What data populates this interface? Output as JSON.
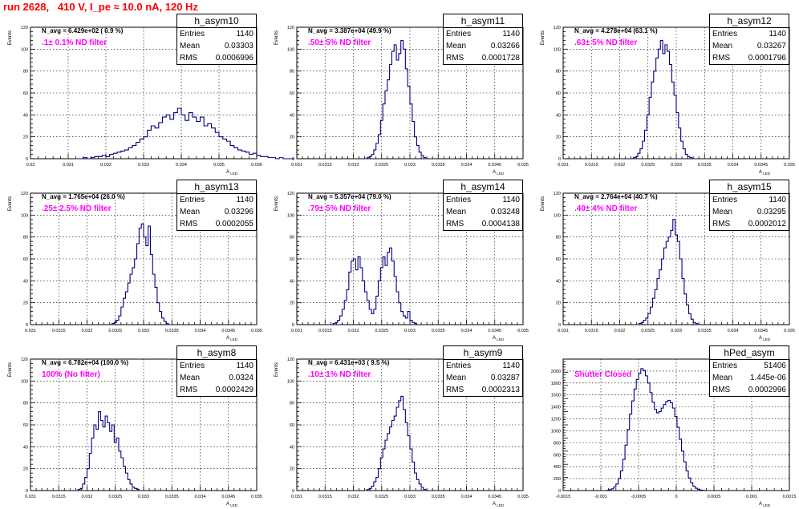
{
  "title": "run 2628,   410 V, I_pe ≈ 10.0 nA, 120 Hz",
  "chart_data": [
    {
      "type": "bar",
      "name": "h_asym10",
      "stats": {
        "entries_label": "Entries",
        "entries": "1140",
        "mean_label": "Mean",
        "mean": "0.03303",
        "rms_label": "RMS",
        "rms": "0.0006996"
      },
      "navg": "N_avg = 6.429e+02 ( 0.9 %)",
      "filter": ".1± 0.1% ND filter",
      "xlabel": "A_LED",
      "ylabel": "Events",
      "xlim": [
        0.03,
        0.036
      ],
      "ylim": [
        0,
        120
      ],
      "xticks": [
        "0.03",
        "0.031",
        "0.032",
        "0.033",
        "0.034",
        "0.035",
        "0.036"
      ],
      "yticks": [
        "0",
        "20",
        "40",
        "60",
        "80",
        "100",
        "120"
      ],
      "x0": 0.0312,
      "bin": 0.0001,
      "values": [
        0,
        0,
        1,
        0,
        1,
        2,
        2,
        3,
        2,
        4,
        5,
        6,
        7,
        8,
        10,
        12,
        15,
        18,
        20,
        26,
        30,
        28,
        33,
        38,
        40,
        36,
        42,
        46,
        40,
        35,
        42,
        38,
        34,
        38,
        30,
        32,
        28,
        24,
        20,
        18,
        16,
        12,
        10,
        8,
        7,
        6,
        4,
        5,
        3,
        2,
        2,
        1,
        1,
        0,
        1,
        0,
        0,
        0
      ]
    },
    {
      "type": "bar",
      "name": "h_asym11",
      "stats": {
        "entries_label": "Entries",
        "entries": "1140",
        "mean_label": "Mean",
        "mean": "0.03266",
        "rms_label": "RMS",
        "rms": "0.0001728"
      },
      "navg": "N_avg = 3.387e+04 (49.9 %)",
      "filter": ".50± 5% ND filter",
      "xlabel": "A_LED",
      "ylabel": "Events",
      "xlim": [
        0.031,
        0.035
      ],
      "ylim": [
        0,
        120
      ],
      "xticks": [
        "0.031",
        "0.0315",
        "0.032",
        "0.0325",
        "0.033",
        "0.0335",
        "0.034",
        "0.0345",
        "0.035"
      ],
      "yticks": [
        "0",
        "20",
        "40",
        "60",
        "80",
        "100",
        "120"
      ],
      "x0": 0.0322,
      "bin": 4e-05,
      "values": [
        0,
        1,
        2,
        4,
        8,
        14,
        22,
        35,
        50,
        62,
        72,
        86,
        98,
        104,
        90,
        96,
        108,
        100,
        82,
        66,
        50,
        34,
        20,
        12,
        6,
        3,
        1,
        0
      ]
    },
    {
      "type": "bar",
      "name": "h_asym12",
      "stats": {
        "entries_label": "Entries",
        "entries": "1140",
        "mean_label": "Mean",
        "mean": "0.03267",
        "rms_label": "RMS",
        "rms": "0.0001796"
      },
      "navg": "N_avg = 4.278e+04 (63.1 %)",
      "filter": ".63± 5% ND filter",
      "xlabel": "A_LED",
      "ylabel": "Events",
      "xlim": [
        0.031,
        0.035
      ],
      "ylim": [
        0,
        120
      ],
      "xticks": [
        "0.031",
        "0.0315",
        "0.032",
        "0.0325",
        "0.033",
        "0.0335",
        "0.034",
        "0.0345",
        "0.035"
      ],
      "yticks": [
        "0",
        "20",
        "40",
        "60",
        "80",
        "100",
        "120"
      ],
      "x0": 0.0322,
      "bin": 4e-05,
      "values": [
        0,
        1,
        2,
        5,
        9,
        16,
        26,
        40,
        56,
        70,
        80,
        92,
        100,
        108,
        96,
        104,
        98,
        86,
        70,
        58,
        42,
        28,
        16,
        9,
        4,
        2,
        1,
        0
      ]
    },
    {
      "type": "bar",
      "name": "h_asym13",
      "stats": {
        "entries_label": "Entries",
        "entries": "1140",
        "mean_label": "Mean",
        "mean": "0.03296",
        "rms_label": "RMS",
        "rms": "0.0002055"
      },
      "navg": "N_avg = 1.765e+04 (26.0 %)",
      "filter": ".25± 2.5% ND filter",
      "xlabel": "A_LED",
      "ylabel": "Events",
      "xlim": [
        0.031,
        0.035
      ],
      "ylim": [
        0,
        120
      ],
      "xticks": [
        "0.031",
        "0.0315",
        "0.032",
        "0.0325",
        "0.033",
        "0.0335",
        "0.034",
        "0.0345",
        "0.035"
      ],
      "yticks": [
        "0",
        "20",
        "40",
        "60",
        "80",
        "100",
        "120"
      ],
      "x0": 0.0324,
      "bin": 4e-05,
      "values": [
        0,
        1,
        2,
        4,
        8,
        16,
        24,
        30,
        38,
        46,
        52,
        60,
        74,
        88,
        92,
        80,
        72,
        90,
        64,
        46,
        34,
        20,
        12,
        6,
        3,
        1,
        0
      ]
    },
    {
      "type": "bar",
      "name": "h_asym14",
      "stats": {
        "entries_label": "Entries",
        "entries": "1140",
        "mean_label": "Mean",
        "mean": "0.03248",
        "rms_label": "RMS",
        "rms": "0.0004138"
      },
      "navg": "N_avg = 5.357e+04 (79.0 %)",
      "filter": ".79± 5% ND filter",
      "xlabel": "A_LED",
      "ylabel": "Events",
      "xlim": [
        0.031,
        0.035
      ],
      "ylim": [
        0,
        120
      ],
      "xticks": [
        "0.031",
        "0.0315",
        "0.032",
        "0.0325",
        "0.033",
        "0.0335",
        "0.034",
        "0.0345",
        "0.035"
      ],
      "yticks": [
        "0",
        "20",
        "40",
        "60",
        "80",
        "100",
        "120"
      ],
      "x0": 0.0316,
      "bin": 4e-05,
      "values": [
        0,
        1,
        2,
        4,
        8,
        14,
        22,
        32,
        48,
        58,
        60,
        50,
        62,
        52,
        40,
        30,
        22,
        14,
        10,
        14,
        26,
        40,
        52,
        62,
        54,
        66,
        70,
        58,
        44,
        30,
        20,
        12,
        8,
        6,
        12,
        4,
        2,
        1,
        0
      ]
    },
    {
      "type": "bar",
      "name": "h_asym15",
      "stats": {
        "entries_label": "Entries",
        "entries": "1140",
        "mean_label": "Mean",
        "mean": "0.03295",
        "rms_label": "RMS",
        "rms": "0.0002012"
      },
      "navg": "N_avg = 2.764e+04 (40.7 %)",
      "filter": ".40± 4% ND filter",
      "xlabel": "A_LED",
      "ylabel": "Events",
      "xlim": [
        0.031,
        0.035
      ],
      "ylim": [
        0,
        120
      ],
      "xticks": [
        "0.031",
        "0.0315",
        "0.032",
        "0.0325",
        "0.033",
        "0.0335",
        "0.034",
        "0.0345",
        "0.035"
      ],
      "yticks": [
        "0",
        "20",
        "40",
        "60",
        "80",
        "100",
        "120"
      ],
      "x0": 0.0323,
      "bin": 4e-05,
      "values": [
        0,
        1,
        2,
        4,
        6,
        10,
        16,
        24,
        32,
        42,
        50,
        60,
        70,
        76,
        80,
        86,
        96,
        82,
        76,
        60,
        42,
        28,
        18,
        10,
        5,
        2,
        1,
        0
      ]
    },
    {
      "type": "bar",
      "name": "h_asym8",
      "stats": {
        "entries_label": "Entries",
        "entries": "1140",
        "mean_label": "Mean",
        "mean": "0.0324",
        "rms_label": "RMS",
        "rms": "0.0002429"
      },
      "navg": "N_avg = 6.782e+04 (100.0 %)",
      "filter": "100% (No filter)",
      "xlabel": "A_LED",
      "ylabel": "Events",
      "xlim": [
        0.031,
        0.035
      ],
      "ylim": [
        0,
        120
      ],
      "xticks": [
        "0.031",
        "0.0315",
        "0.032",
        "0.0325",
        "0.033",
        "0.0335",
        "0.034",
        "0.0345",
        "0.035"
      ],
      "yticks": [
        "0",
        "20",
        "40",
        "60",
        "80",
        "100",
        "120"
      ],
      "x0": 0.0318,
      "bin": 4e-05,
      "values": [
        0,
        1,
        2,
        6,
        12,
        20,
        34,
        48,
        60,
        56,
        72,
        64,
        58,
        68,
        62,
        54,
        60,
        44,
        48,
        36,
        30,
        22,
        16,
        10,
        6,
        3,
        2,
        1,
        0
      ]
    },
    {
      "type": "bar",
      "name": "h_asym9",
      "stats": {
        "entries_label": "Entries",
        "entries": "1140",
        "mean_label": "Mean",
        "mean": "0.03287",
        "rms_label": "RMS",
        "rms": "0.0002313"
      },
      "navg": "N_avg = 6.431e+03 ( 9.5 %)",
      "filter": ".10± 1% ND filter",
      "xlabel": "A_LED",
      "ylabel": "Events",
      "xlim": [
        0.031,
        0.035
      ],
      "ylim": [
        0,
        120
      ],
      "xticks": [
        "0.031",
        "0.0315",
        "0.032",
        "0.0325",
        "0.033",
        "0.0335",
        "0.034",
        "0.0345",
        "0.035"
      ],
      "yticks": [
        "0",
        "20",
        "40",
        "60",
        "80",
        "100",
        "120"
      ],
      "x0": 0.0322,
      "bin": 4e-05,
      "values": [
        0,
        1,
        2,
        4,
        8,
        12,
        20,
        30,
        38,
        46,
        52,
        58,
        64,
        68,
        76,
        82,
        86,
        74,
        62,
        50,
        38,
        26,
        16,
        10,
        6,
        3,
        1,
        0
      ]
    },
    {
      "type": "bar",
      "name": "hPed_asym",
      "stats": {
        "entries_label": "Entries",
        "entries": "51406",
        "mean_label": "Mean",
        "mean": "1.445e-06",
        "rms_label": "RMS",
        "rms": "0.0002996"
      },
      "navg": "",
      "filter": "Shutter Closed",
      "xlabel": "A_LED",
      "ylabel": "",
      "xlim": [
        -0.0015,
        0.0015
      ],
      "ylim": [
        0,
        2200
      ],
      "xticks": [
        "-0.0015",
        "-0.001",
        "-0.0005",
        "0",
        "0.0005",
        "0.001",
        "0.0015"
      ],
      "yticks": [
        "0",
        "200",
        "400",
        "600",
        "800",
        "1000",
        "1200",
        "1400",
        "1600",
        "1800",
        "2000"
      ],
      "x0": -0.00095,
      "bin": 3e-05,
      "values": [
        0,
        5,
        15,
        30,
        60,
        110,
        200,
        330,
        520,
        760,
        1020,
        1280,
        1500,
        1700,
        1860,
        1960,
        2040,
        2010,
        1920,
        1800,
        1640,
        1480,
        1360,
        1300,
        1320,
        1380,
        1440,
        1490,
        1510,
        1470,
        1380,
        1240,
        1060,
        860,
        660,
        480,
        330,
        210,
        130,
        75,
        40,
        20,
        10,
        4,
        1,
        0
      ]
    }
  ]
}
